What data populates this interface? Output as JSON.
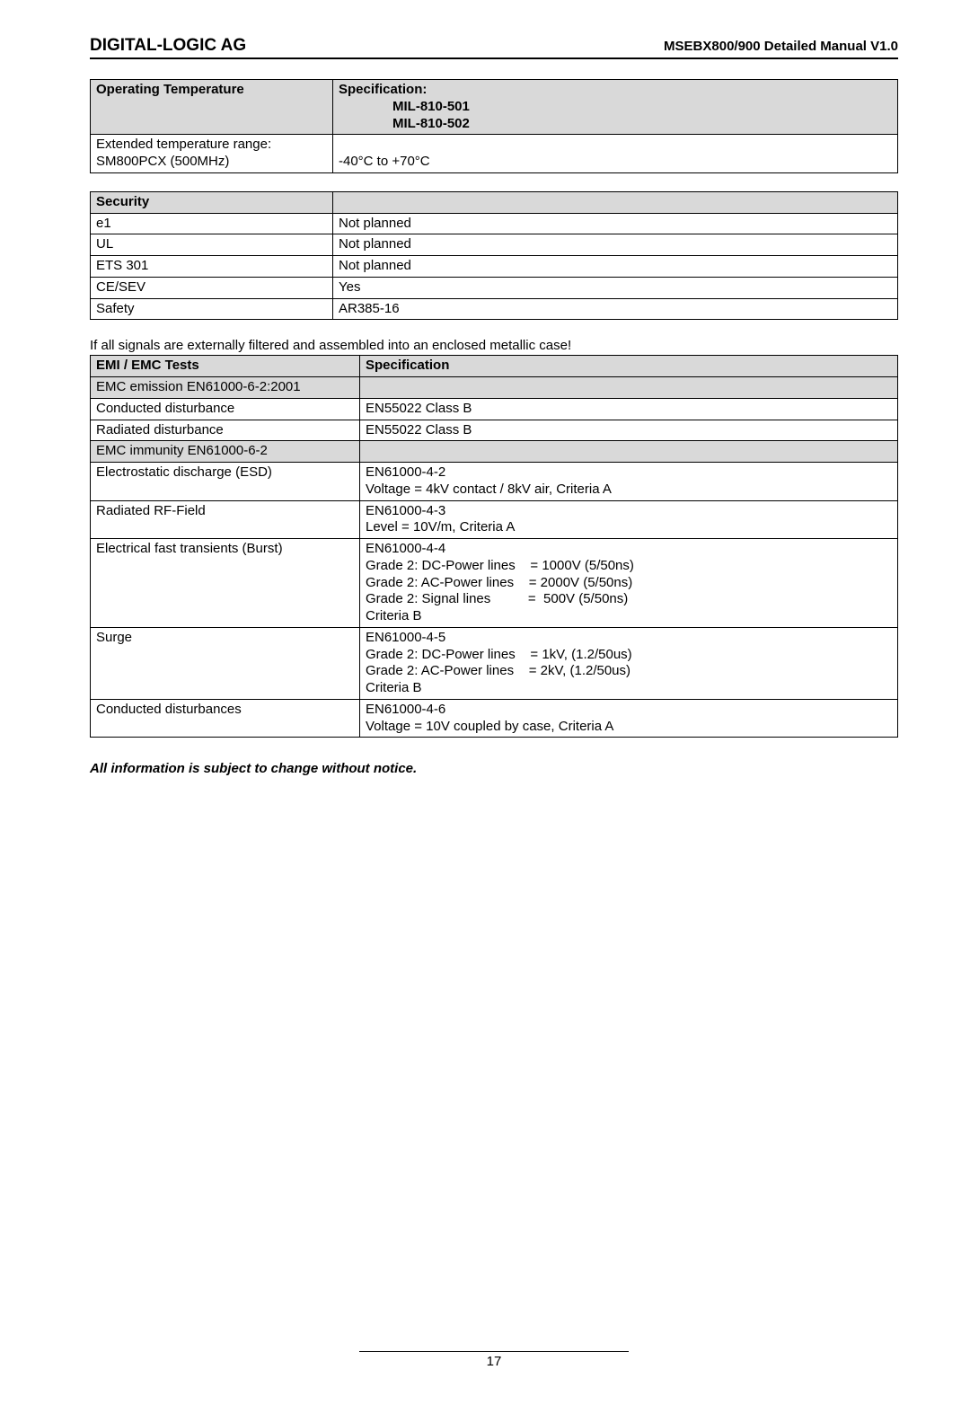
{
  "header": {
    "left": "DIGITAL-LOGIC AG",
    "right": "MSEBX800/900 Detailed Manual V1.0"
  },
  "table1": {
    "h1": "Operating Temperature",
    "h2_l1": "Specification:",
    "h2_l2": "MIL-810-501",
    "h2_l3": "MIL-810-502",
    "r1c1_l1": "Extended  temperature  range:",
    "r1c1_l2": "SM800PCX (500MHz)",
    "r1c2": "-40°C to +70°C"
  },
  "table2": {
    "h1": "Security",
    "rows": [
      [
        "e1",
        "Not planned"
      ],
      [
        "UL",
        "Not planned"
      ],
      [
        "ETS 301",
        "Not planned"
      ],
      [
        "CE/SEV",
        "Yes"
      ],
      [
        "Safety",
        "AR385-16"
      ]
    ]
  },
  "preline": "If all signals are externally filtered and assembled into an enclosed metallic case!",
  "table3": {
    "h1": "EMI / EMC Tests",
    "h2": "Specification",
    "rows": [
      {
        "c1": "EMC emission EN61000-6-2:2001",
        "c2": "",
        "shaded": true
      },
      {
        "c1": "Conducted disturbance",
        "c2": "EN55022 Class B"
      },
      {
        "c1": "Radiated disturbance",
        "c2": "EN55022 Class B"
      },
      {
        "c1": "EMC immunity EN61000-6-2",
        "c2": "",
        "shaded": true
      },
      {
        "c1": "Electrostatic discharge (ESD)",
        "c2": "EN61000-4-2\nVoltage = 4kV contact / 8kV air, Criteria A"
      },
      {
        "c1": "Radiated RF-Field",
        "c2": "EN61000-4-3\nLevel = 10V/m, Criteria A"
      },
      {
        "c1": "Electrical fast transients (Burst)",
        "c2": "EN61000-4-4\nGrade 2: DC-Power lines    = 1000V (5/50ns)\nGrade 2: AC-Power lines    = 2000V (5/50ns)\nGrade 2: Signal lines          =  500V (5/50ns)\nCriteria B"
      },
      {
        "c1": "Surge",
        "c2": "EN61000-4-5\nGrade 2: DC-Power lines    = 1kV, (1.2/50us)\nGrade 2: AC-Power lines    = 2kV, (1.2/50us)\nCriteria B"
      },
      {
        "c1": "Conducted disturbances",
        "c2": "EN61000-4-6\nVoltage = 10V coupled by case, Criteria A"
      }
    ]
  },
  "notice": "All information is subject to change without notice.",
  "page_number": "17"
}
